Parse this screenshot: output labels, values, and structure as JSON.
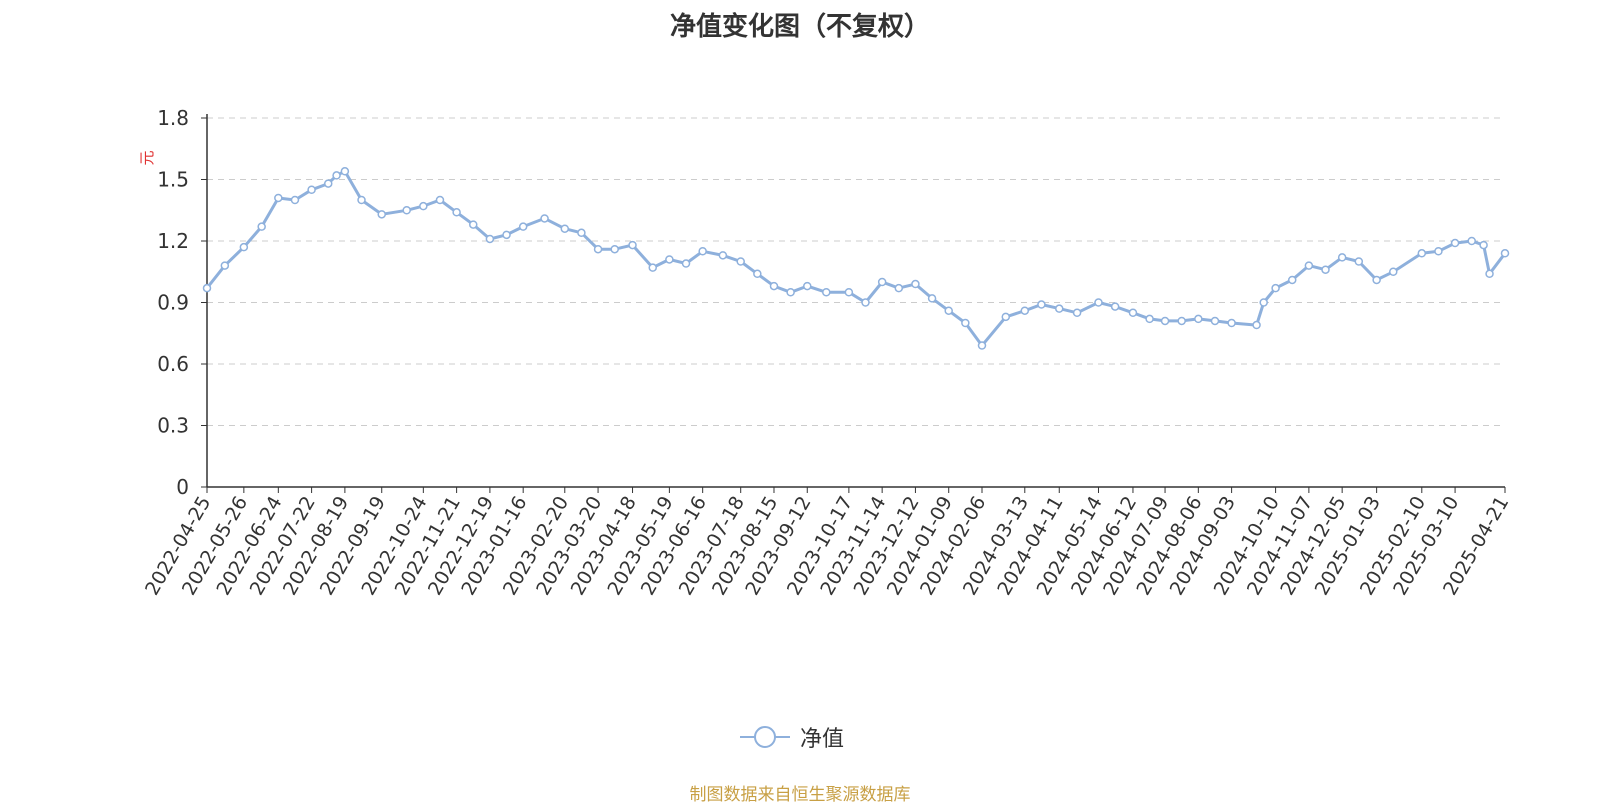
{
  "title": "净值变化图（不复权）",
  "source": "制图数据来自恒生聚源数据库",
  "chart_data": {
    "type": "line",
    "title": "净值变化图（不复权）",
    "ylabel": "元",
    "ylim": [
      0,
      1.8
    ],
    "yticks": [
      0,
      0.3,
      0.6,
      0.9,
      1.2,
      1.5,
      1.8
    ],
    "y_grid": true,
    "legend_position": "bottom-center",
    "color": "#8eb0dc",
    "x_tick_labels": [
      "2022-04-25",
      "2022-05-26",
      "2022-06-24",
      "2022-07-22",
      "2022-08-19",
      "2022-09-19",
      "2022-10-24",
      "2022-11-21",
      "2022-12-19",
      "2023-01-16",
      "2023-02-20",
      "2023-03-20",
      "2023-04-18",
      "2023-05-19",
      "2023-06-16",
      "2023-07-18",
      "2023-08-15",
      "2023-09-12",
      "2023-10-17",
      "2023-11-14",
      "2023-12-12",
      "2024-01-09",
      "2024-02-06",
      "2024-03-13",
      "2024-04-11",
      "2024-05-14",
      "2024-06-12",
      "2024-07-09",
      "2024-08-06",
      "2024-09-03",
      "2024-10-10",
      "2024-11-07",
      "2024-12-05",
      "2025-01-03",
      "2025-02-10",
      "2025-03-10",
      "2025-04-21"
    ],
    "series": [
      {
        "name": "净值",
        "x": [
          "2022-04-25",
          "2022-05-10",
          "2022-05-26",
          "2022-06-10",
          "2022-06-24",
          "2022-07-08",
          "2022-07-22",
          "2022-08-05",
          "2022-08-12",
          "2022-08-19",
          "2022-09-02",
          "2022-09-19",
          "2022-10-10",
          "2022-10-24",
          "2022-11-07",
          "2022-11-21",
          "2022-12-05",
          "2022-12-19",
          "2023-01-02",
          "2023-01-16",
          "2023-02-03",
          "2023-02-20",
          "2023-03-06",
          "2023-03-20",
          "2023-04-03",
          "2023-04-18",
          "2023-05-05",
          "2023-05-19",
          "2023-06-02",
          "2023-06-16",
          "2023-07-03",
          "2023-07-18",
          "2023-08-01",
          "2023-08-15",
          "2023-08-29",
          "2023-09-12",
          "2023-09-28",
          "2023-10-17",
          "2023-10-31",
          "2023-11-14",
          "2023-11-28",
          "2023-12-12",
          "2023-12-26",
          "2024-01-09",
          "2024-01-23",
          "2024-02-06",
          "2024-02-26",
          "2024-03-13",
          "2024-03-27",
          "2024-04-11",
          "2024-04-26",
          "2024-05-14",
          "2024-05-28",
          "2024-06-12",
          "2024-06-26",
          "2024-07-09",
          "2024-07-23",
          "2024-08-06",
          "2024-08-20",
          "2024-09-03",
          "2024-09-24",
          "2024-09-30",
          "2024-10-10",
          "2024-10-24",
          "2024-11-07",
          "2024-11-21",
          "2024-12-05",
          "2024-12-19",
          "2025-01-03",
          "2025-01-17",
          "2025-02-10",
          "2025-02-24",
          "2025-03-10",
          "2025-03-24",
          "2025-04-03",
          "2025-04-08",
          "2025-04-21"
        ],
        "y": [
          0.97,
          1.08,
          1.17,
          1.27,
          1.41,
          1.4,
          1.45,
          1.48,
          1.52,
          1.54,
          1.4,
          1.33,
          1.35,
          1.37,
          1.4,
          1.34,
          1.28,
          1.21,
          1.23,
          1.27,
          1.31,
          1.26,
          1.24,
          1.16,
          1.16,
          1.18,
          1.07,
          1.11,
          1.09,
          1.15,
          1.13,
          1.1,
          1.04,
          0.98,
          0.95,
          0.98,
          0.95,
          0.95,
          0.9,
          1.0,
          0.97,
          0.99,
          0.92,
          0.86,
          0.8,
          0.69,
          0.83,
          0.86,
          0.89,
          0.87,
          0.85,
          0.9,
          0.88,
          0.85,
          0.82,
          0.81,
          0.81,
          0.82,
          0.81,
          0.8,
          0.79,
          0.9,
          0.97,
          1.01,
          1.08,
          1.06,
          1.12,
          1.1,
          1.01,
          1.05,
          1.14,
          1.15,
          1.19,
          1.2,
          1.18,
          1.04,
          1.14
        ]
      }
    ]
  }
}
